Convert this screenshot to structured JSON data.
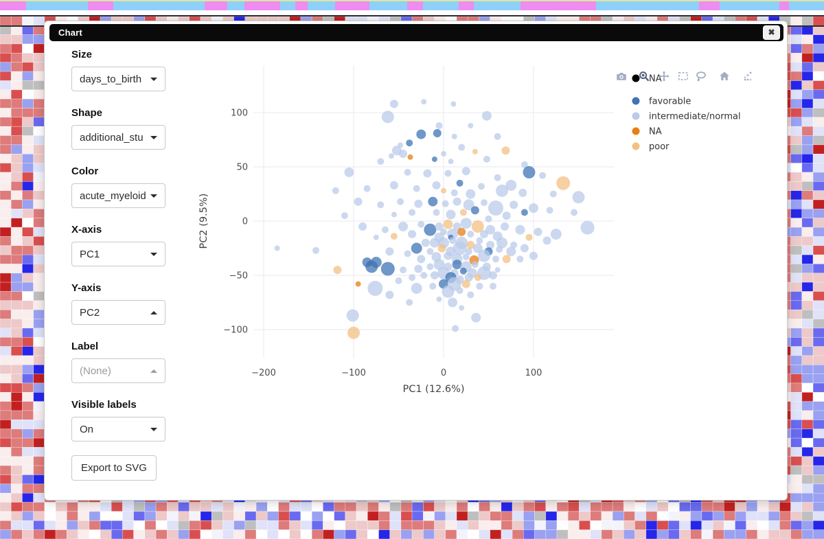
{
  "window": {
    "title": "Chart",
    "close_glyph": "✖"
  },
  "sidebar": {
    "groups": [
      {
        "label": "Size",
        "value": "days_to_birth",
        "caret": "down",
        "disabled": false
      },
      {
        "label": "Shape",
        "value": "additional_stu",
        "caret": "down",
        "disabled": false
      },
      {
        "label": "Color",
        "value": "acute_myeloid",
        "caret": "down",
        "disabled": false
      },
      {
        "label": "X-axis",
        "value": "PC1",
        "caret": "down",
        "disabled": false
      },
      {
        "label": "Y-axis",
        "value": "PC2",
        "caret": "up",
        "disabled": false
      },
      {
        "label": "Label",
        "value": "(None)",
        "caret": "up",
        "disabled": true
      },
      {
        "label": "Visible labels",
        "value": "On",
        "caret": "down",
        "disabled": false
      }
    ],
    "export_button": "Export to SVG"
  },
  "modebar": {
    "icons": [
      "camera-icon",
      "zoom-icon",
      "pan-icon",
      "box-select-icon",
      "lasso-icon",
      "home-icon",
      "plotly-logo-icon"
    ],
    "active": "zoom-icon",
    "color": "#a4adc2",
    "active_color": "#55627e"
  },
  "chart_data": {
    "type": "scatter",
    "title": "",
    "xlabel": "PC1 (12.6%)",
    "ylabel": "PC2 (9.5%)",
    "xlim": [
      -212,
      190
    ],
    "ylim": [
      -126,
      143
    ],
    "grid": true,
    "x_ticks": [
      -200,
      -100,
      0,
      100
    ],
    "x_tick_labels": [
      "−200",
      "−100",
      "0",
      "100"
    ],
    "y_ticks": [
      -100,
      -50,
      0,
      50,
      100
    ],
    "y_tick_labels": [
      "−100",
      "−50",
      "0",
      "50",
      "100"
    ],
    "legend_position": "right",
    "legend": [
      {
        "label": "NA",
        "color": "#000000",
        "own_group": true
      },
      {
        "label": "favorable",
        "color": "#3f74b6",
        "own_group": false
      },
      {
        "label": "intermediate/normal",
        "color": "#b9cbe9",
        "own_group": false
      },
      {
        "label": "NA",
        "color": "#e87e16",
        "own_group": false
      },
      {
        "label": "poor",
        "color": "#f3c083",
        "own_group": false
      }
    ],
    "categories": [
      "favorable",
      "intermediate/normal",
      "NA",
      "poor"
    ],
    "category_colors": [
      "#3f74b6",
      "#b9cbe9",
      "#e87e16",
      "#f3c083"
    ],
    "marker_opacity": 0.75,
    "size_encodes": "days_to_birth",
    "points_format": [
      "x",
      "y",
      "radius_px",
      "category_index"
    ],
    "points": [
      [
        -185,
        -25,
        4,
        1
      ],
      [
        -142,
        -27,
        5,
        1
      ],
      [
        -100,
        -103,
        9,
        3
      ],
      [
        -118,
        -45,
        6,
        3
      ],
      [
        -95,
        -58,
        4,
        2
      ],
      [
        -55,
        108,
        6,
        1
      ],
      [
        -22,
        110,
        4,
        1
      ],
      [
        11,
        108,
        4,
        1
      ],
      [
        -62,
        96,
        9,
        1
      ],
      [
        48,
        97,
        7,
        1
      ],
      [
        -5,
        88,
        5,
        1
      ],
      [
        30,
        88,
        4,
        1
      ],
      [
        -25,
        80,
        7,
        0
      ],
      [
        -7,
        81,
        6,
        0
      ],
      [
        12,
        78,
        4,
        1
      ],
      [
        60,
        78,
        5,
        1
      ],
      [
        -48,
        70,
        4,
        1
      ],
      [
        -38,
        72,
        5,
        0
      ],
      [
        -52,
        65,
        7,
        1
      ],
      [
        -45,
        62,
        6,
        1
      ],
      [
        -58,
        60,
        4,
        1
      ],
      [
        20,
        68,
        5,
        1
      ],
      [
        35,
        64,
        4,
        3
      ],
      [
        69,
        65,
        6,
        3
      ],
      [
        -37,
        59,
        4,
        2
      ],
      [
        0,
        62,
        4,
        1
      ],
      [
        48,
        57,
        5,
        1
      ],
      [
        -10,
        57,
        4,
        0
      ],
      [
        8,
        55,
        4,
        1
      ],
      [
        -70,
        55,
        5,
        1
      ],
      [
        90,
        52,
        5,
        1
      ],
      [
        -105,
        45,
        7,
        1
      ],
      [
        -40,
        45,
        5,
        1
      ],
      [
        -18,
        44,
        6,
        1
      ],
      [
        5,
        44,
        5,
        1
      ],
      [
        25,
        46,
        6,
        1
      ],
      [
        60,
        40,
        5,
        1
      ],
      [
        95,
        45,
        9,
        0
      ],
      [
        110,
        42,
        5,
        1
      ],
      [
        133,
        35,
        10,
        3
      ],
      [
        75,
        33,
        8,
        1
      ],
      [
        42,
        32,
        5,
        1
      ],
      [
        18,
        35,
        5,
        0
      ],
      [
        -8,
        33,
        6,
        1
      ],
      [
        -30,
        30,
        5,
        1
      ],
      [
        -55,
        33,
        6,
        1
      ],
      [
        -85,
        30,
        5,
        1
      ],
      [
        150,
        22,
        9,
        1
      ],
      [
        122,
        25,
        5,
        1
      ],
      [
        88,
        26,
        6,
        1
      ],
      [
        65,
        28,
        9,
        1
      ],
      [
        -120,
        28,
        5,
        1
      ],
      [
        0,
        28,
        4,
        3
      ],
      [
        12,
        26,
        5,
        1
      ],
      [
        30,
        25,
        7,
        1
      ],
      [
        -95,
        18,
        6,
        1
      ],
      [
        -70,
        15,
        5,
        1
      ],
      [
        -48,
        18,
        5,
        1
      ],
      [
        -28,
        16,
        6,
        1
      ],
      [
        -12,
        18,
        7,
        0
      ],
      [
        2,
        16,
        5,
        1
      ],
      [
        15,
        18,
        6,
        1
      ],
      [
        28,
        15,
        8,
        1
      ],
      [
        45,
        17,
        5,
        1
      ],
      [
        58,
        12,
        11,
        1
      ],
      [
        78,
        15,
        6,
        1
      ],
      [
        100,
        12,
        7,
        1
      ],
      [
        118,
        10,
        5,
        1
      ],
      [
        160,
        -6,
        10,
        1
      ],
      [
        145,
        8,
        5,
        1
      ],
      [
        -8,
        8,
        5,
        1
      ],
      [
        8,
        6,
        7,
        1
      ],
      [
        22,
        8,
        5,
        3
      ],
      [
        35,
        10,
        6,
        0
      ],
      [
        -35,
        8,
        5,
        1
      ],
      [
        -55,
        6,
        4,
        1
      ],
      [
        70,
        5,
        6,
        1
      ],
      [
        90,
        8,
        5,
        0
      ],
      [
        -110,
        5,
        5,
        1
      ],
      [
        50,
        2,
        5,
        1
      ],
      [
        -90,
        -5,
        6,
        1
      ],
      [
        -65,
        -8,
        5,
        1
      ],
      [
        -45,
        -5,
        7,
        1
      ],
      [
        -25,
        -3,
        5,
        1
      ],
      [
        -15,
        -8,
        9,
        0
      ],
      [
        -5,
        -5,
        6,
        1
      ],
      [
        5,
        -3,
        7,
        3
      ],
      [
        15,
        -5,
        6,
        1
      ],
      [
        25,
        -2,
        8,
        1
      ],
      [
        38,
        -5,
        9,
        3
      ],
      [
        52,
        -8,
        7,
        1
      ],
      [
        68,
        -5,
        6,
        1
      ],
      [
        85,
        -8,
        7,
        1
      ],
      [
        105,
        -10,
        6,
        1
      ],
      [
        125,
        -12,
        8,
        1
      ],
      [
        0,
        -10,
        5,
        1
      ],
      [
        10,
        -12,
        8,
        1
      ],
      [
        20,
        -10,
        6,
        2
      ],
      [
        30,
        -12,
        5,
        1
      ],
      [
        45,
        -12,
        6,
        1
      ],
      [
        -35,
        -12,
        6,
        1
      ],
      [
        -55,
        -14,
        5,
        3
      ],
      [
        60,
        -14,
        7,
        1
      ],
      [
        95,
        -15,
        5,
        3
      ],
      [
        115,
        -18,
        6,
        1
      ],
      [
        -75,
        -15,
        4,
        1
      ],
      [
        -5,
        -15,
        7,
        1
      ],
      [
        8,
        -15,
        4,
        0
      ],
      [
        -20,
        -20,
        6,
        1
      ],
      [
        -10,
        -20,
        7,
        1
      ],
      [
        0,
        -20,
        8,
        1
      ],
      [
        10,
        -18,
        5,
        1
      ],
      [
        20,
        -20,
        9,
        1
      ],
      [
        30,
        -22,
        6,
        3
      ],
      [
        40,
        -18,
        5,
        1
      ],
      [
        52,
        -22,
        6,
        1
      ],
      [
        65,
        -20,
        8,
        1
      ],
      [
        78,
        -22,
        5,
        1
      ],
      [
        -30,
        -25,
        8,
        0
      ],
      [
        -15,
        -28,
        5,
        1
      ],
      [
        -2,
        -25,
        6,
        3
      ],
      [
        8,
        -28,
        7,
        1
      ],
      [
        18,
        -25,
        10,
        1
      ],
      [
        28,
        -28,
        5,
        1
      ],
      [
        38,
        -25,
        7,
        1
      ],
      [
        50,
        -28,
        6,
        0
      ],
      [
        62,
        -26,
        5,
        1
      ],
      [
        75,
        -28,
        7,
        1
      ],
      [
        90,
        -25,
        6,
        1
      ],
      [
        34,
        -36,
        7,
        2
      ],
      [
        5,
        -32,
        6,
        1
      ],
      [
        -8,
        -33,
        7,
        1
      ],
      [
        15,
        -35,
        8,
        1
      ],
      [
        25,
        -33,
        5,
        1
      ],
      [
        45,
        -32,
        9,
        1
      ],
      [
        58,
        -35,
        5,
        1
      ],
      [
        -25,
        -35,
        6,
        1
      ],
      [
        -40,
        -30,
        5,
        1
      ],
      [
        -60,
        -28,
        6,
        1
      ],
      [
        -82,
        -39,
        4,
        2
      ],
      [
        -85,
        -38,
        7,
        0
      ],
      [
        -75,
        -38,
        8,
        0
      ],
      [
        70,
        -35,
        6,
        3
      ],
      [
        85,
        -35,
        5,
        1
      ],
      [
        100,
        -32,
        6,
        1
      ],
      [
        -5,
        -40,
        8,
        1
      ],
      [
        5,
        -42,
        6,
        1
      ],
      [
        15,
        -40,
        7,
        0
      ],
      [
        25,
        -42,
        8,
        1
      ],
      [
        35,
        -40,
        5,
        1
      ],
      [
        48,
        -42,
        6,
        1
      ],
      [
        -15,
        -42,
        5,
        1
      ],
      [
        -28,
        -44,
        6,
        1
      ],
      [
        -45,
        -45,
        5,
        1
      ],
      [
        -62,
        -44,
        10,
        0
      ],
      [
        -80,
        -42,
        9,
        0
      ],
      [
        0,
        -48,
        9,
        1
      ],
      [
        12,
        -48,
        6,
        1
      ],
      [
        22,
        -46,
        5,
        0
      ],
      [
        32,
        -48,
        7,
        1
      ],
      [
        45,
        -48,
        10,
        1
      ],
      [
        -10,
        -50,
        6,
        1
      ],
      [
        -22,
        -50,
        5,
        1
      ],
      [
        28,
        -52,
        6,
        1
      ],
      [
        8,
        -52,
        8,
        0
      ],
      [
        18,
        -54,
        6,
        1
      ],
      [
        38,
        -52,
        5,
        3
      ],
      [
        55,
        -50,
        6,
        1
      ],
      [
        -35,
        -52,
        5,
        1
      ],
      [
        60,
        -45,
        4,
        1
      ],
      [
        -50,
        -55,
        5,
        1
      ],
      [
        -76,
        -62,
        11,
        1
      ],
      [
        0,
        -58,
        7,
        0
      ],
      [
        12,
        -58,
        10,
        1
      ],
      [
        25,
        -58,
        6,
        3
      ],
      [
        -12,
        -60,
        5,
        1
      ],
      [
        -30,
        -62,
        8,
        1
      ],
      [
        40,
        -60,
        5,
        1
      ],
      [
        5,
        -65,
        9,
        1
      ],
      [
        18,
        -64,
        5,
        1
      ],
      [
        -60,
        -68,
        6,
        1
      ],
      [
        30,
        -68,
        5,
        1
      ],
      [
        -5,
        -72,
        4,
        1
      ],
      [
        10,
        -75,
        7,
        1
      ],
      [
        36,
        -89,
        7,
        1
      ],
      [
        13,
        -99,
        5,
        1
      ],
      [
        -101,
        -87,
        9,
        1
      ],
      [
        55,
        -60,
        5,
        1
      ],
      [
        -38,
        -75,
        5,
        1
      ],
      [
        20,
        -80,
        4,
        1
      ]
    ]
  },
  "background": {
    "top_line_color": "#dbe7a3",
    "stripe_colors": {
      "V": "#ee8cf0",
      "S": "#8fd0f8"
    },
    "stripe_segments": [
      [
        38,
        "V"
      ],
      [
        90,
        "S"
      ],
      [
        37,
        "V"
      ],
      [
        133,
        "S"
      ],
      [
        33,
        "V"
      ],
      [
        25,
        "S"
      ],
      [
        52,
        "V"
      ],
      [
        22,
        "S"
      ],
      [
        18,
        "V"
      ],
      [
        40,
        "S"
      ],
      [
        50,
        "V"
      ],
      [
        55,
        "S"
      ],
      [
        23,
        "V"
      ],
      [
        52,
        "S"
      ],
      [
        22,
        "V"
      ],
      [
        68,
        "S"
      ],
      [
        110,
        "V"
      ],
      [
        150,
        "S"
      ],
      [
        30,
        "V"
      ],
      [
        87,
        "S"
      ],
      [
        14,
        "V"
      ],
      [
        51,
        "S"
      ]
    ],
    "heatmap": {
      "cols": 74,
      "rows": 57,
      "cell_w": 16.22,
      "cell_h": 13.35,
      "seed": 7,
      "palette": [
        [
          "#de7b7b",
          14
        ],
        [
          "#eec9c9",
          16
        ],
        [
          "#f9eded",
          11
        ],
        [
          "#ffffff",
          7
        ],
        [
          "#d94f4f",
          6
        ],
        [
          "#c22020",
          3
        ],
        [
          "#dfe2f8",
          13
        ],
        [
          "#9aa1f1",
          10
        ],
        [
          "#6a6af0",
          6
        ],
        [
          "#2626ea",
          5
        ],
        [
          "#bfbfbf",
          5
        ],
        [
          "#f3f4fb",
          4
        ]
      ],
      "red_palette": [
        [
          "#de7b7b",
          30
        ],
        [
          "#eec9c9",
          22
        ],
        [
          "#f9eded",
          14
        ],
        [
          "#d94f4f",
          14
        ],
        [
          "#c22020",
          6
        ],
        [
          "#dfe2f8",
          6
        ],
        [
          "#9aa1f1",
          4
        ],
        [
          "#bfbfbf",
          2
        ],
        [
          "#ffffff",
          2
        ]
      ],
      "blue_palette": [
        [
          "#9aa1f1",
          18
        ],
        [
          "#dfe2f8",
          16
        ],
        [
          "#6a6af0",
          12
        ],
        [
          "#2626ea",
          8
        ],
        [
          "#bfbfbf",
          8
        ],
        [
          "#eec9c9",
          10
        ],
        [
          "#de7b7b",
          8
        ],
        [
          "#f9eded",
          8
        ],
        [
          "#ffffff",
          4
        ],
        [
          "#d94f4f",
          4
        ],
        [
          "#c22020",
          2
        ]
      ],
      "red_cols": [
        0,
        1,
        70
      ],
      "blue_cols": [
        71,
        72,
        73
      ]
    }
  }
}
